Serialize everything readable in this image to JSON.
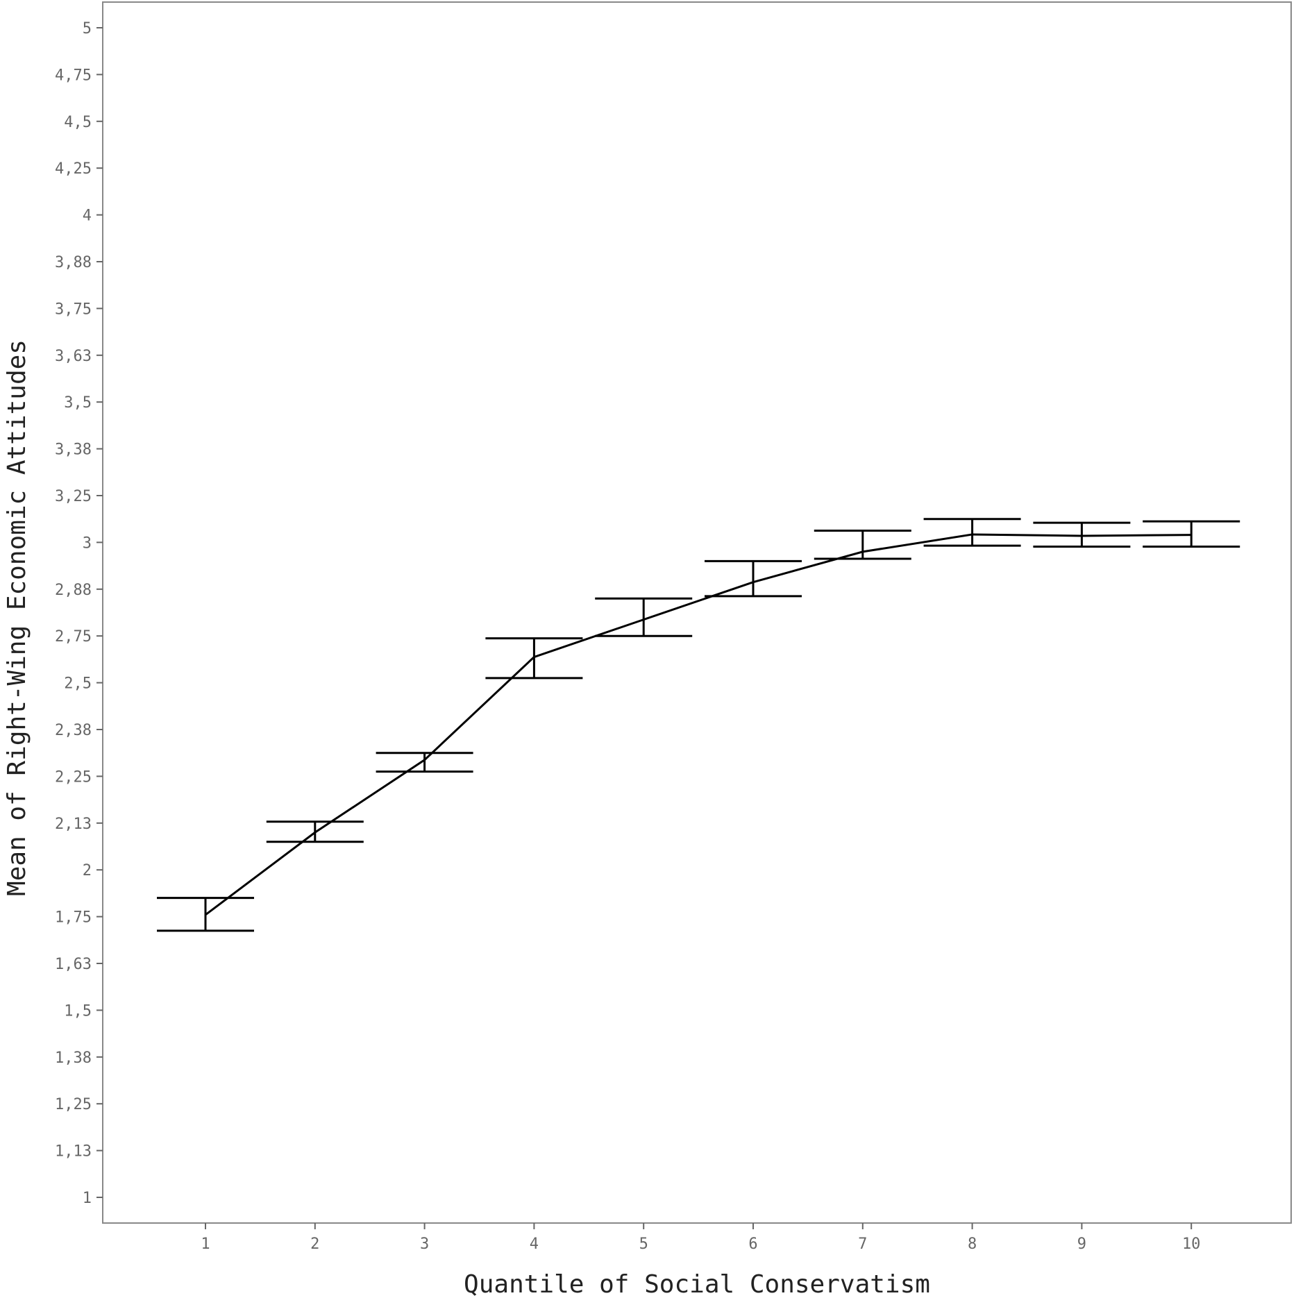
{
  "chart_data": {
    "type": "line",
    "xlabel": "Quantile of Social Conservatism",
    "ylabel": "Mean of Right-Wing Economic Attitudes",
    "x": [
      1,
      2,
      3,
      4,
      5,
      6,
      7,
      8,
      9,
      10
    ],
    "x_tick_labels": [
      "1",
      "2",
      "3",
      "4",
      "5",
      "6",
      "7",
      "8",
      "9",
      "10"
    ],
    "y_tick_labels": [
      "1",
      "1,13",
      "1,25",
      "1,38",
      "1,5",
      "1,63",
      "1,75",
      "2",
      "2,13",
      "2,25",
      "2,38",
      "2,5",
      "2,75",
      "2,88",
      "3",
      "3,25",
      "3,38",
      "3,5",
      "3,63",
      "3,75",
      "3,88",
      "4",
      "4,25",
      "4,5",
      "4,75",
      "5"
    ],
    "y_axis_note": "tick labels are placed at equal spacing (one step per label)",
    "series": [
      {
        "y_pos": [
          6.04,
          7.8,
          9.35,
          11.55,
          12.35,
          13.15,
          13.8,
          14.17,
          14.14,
          14.16
        ],
        "err_low": [
          5.7,
          7.6,
          9.1,
          11.1,
          12.0,
          12.85,
          13.65,
          13.93,
          13.91,
          13.91
        ],
        "err_high": [
          6.4,
          8.03,
          9.5,
          11.95,
          12.8,
          13.6,
          14.25,
          14.5,
          14.42,
          14.45
        ]
      }
    ],
    "grid": false,
    "legend": "none"
  }
}
